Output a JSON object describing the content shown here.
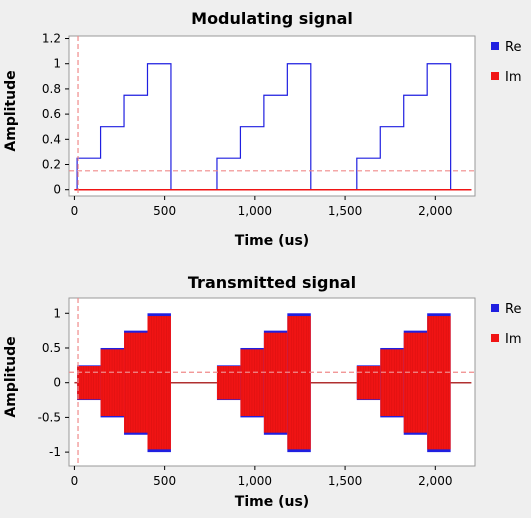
{
  "colors": {
    "background": "#efefef",
    "plot_background": "#ffffff",
    "re": "#1f1fe0",
    "im": "#f01414",
    "marker": "#f08a8a",
    "frame": "#9a9a9a"
  },
  "chart_data": [
    {
      "type": "line",
      "title": "Modulating signal",
      "xlabel": "Time (us)",
      "ylabel": "Amplitude",
      "xlim": [
        -30,
        2220
      ],
      "ylim": [
        -0.05,
        1.22
      ],
      "xticks": [
        {
          "v": 0,
          "label": "0"
        },
        {
          "v": 500,
          "label": "500"
        },
        {
          "v": 1000,
          "label": "1,000"
        },
        {
          "v": 1500,
          "label": "1,500"
        },
        {
          "v": 2000,
          "label": "2,000"
        }
      ],
      "yticks": [
        {
          "v": 0,
          "label": "0"
        },
        {
          "v": 0.2,
          "label": "0.2"
        },
        {
          "v": 0.4,
          "label": "0.4"
        },
        {
          "v": 0.6,
          "label": "0.6"
        },
        {
          "v": 0.8,
          "label": "0.8"
        },
        {
          "v": 1,
          "label": "1"
        },
        {
          "v": 1.2,
          "label": "1.2"
        }
      ],
      "legend": {
        "position": "right",
        "entries": [
          "Re",
          "Im"
        ]
      },
      "marker_lines": {
        "x": 20,
        "y": 0.15
      },
      "series": [
        {
          "name": "Re",
          "step": true,
          "x": [
            0,
            15,
            145,
            275,
            405,
            535,
            790,
            920,
            1050,
            1180,
            1310,
            1565,
            1695,
            1825,
            1955,
            2085,
            2200
          ],
          "y": [
            0,
            0.25,
            0.5,
            0.75,
            1,
            0,
            0.25,
            0.5,
            0.75,
            1,
            0,
            0.25,
            0.5,
            0.75,
            1,
            0,
            0
          ]
        },
        {
          "name": "Im",
          "step": true,
          "x": [
            0,
            2200
          ],
          "y": [
            0,
            0
          ]
        }
      ]
    },
    {
      "type": "line",
      "title": "Transmitted signal",
      "xlabel": "Time (us)",
      "ylabel": "Amplitude",
      "xlim": [
        -30,
        2220
      ],
      "ylim": [
        -1.2,
        1.22
      ],
      "xticks": [
        {
          "v": 0,
          "label": "0"
        },
        {
          "v": 500,
          "label": "500"
        },
        {
          "v": 1000,
          "label": "1,000"
        },
        {
          "v": 1500,
          "label": "1,500"
        },
        {
          "v": 2000,
          "label": "2,000"
        }
      ],
      "yticks": [
        {
          "v": -1,
          "label": "-1"
        },
        {
          "v": -0.5,
          "label": "-0.5"
        },
        {
          "v": 0,
          "label": "0"
        },
        {
          "v": 0.5,
          "label": "0.5"
        },
        {
          "v": 1,
          "label": "1"
        }
      ],
      "legend": {
        "position": "right",
        "entries": [
          "Re",
          "Im"
        ]
      },
      "marker_lines": {
        "x": 20,
        "y": 0.15
      },
      "envelope": {
        "segments": [
          {
            "x0": 15,
            "x1": 145,
            "amp": 0.25
          },
          {
            "x0": 145,
            "x1": 275,
            "amp": 0.5
          },
          {
            "x0": 275,
            "x1": 405,
            "amp": 0.75
          },
          {
            "x0": 405,
            "x1": 535,
            "amp": 1.0
          },
          {
            "x0": 790,
            "x1": 920,
            "amp": 0.25
          },
          {
            "x0": 920,
            "x1": 1050,
            "amp": 0.5
          },
          {
            "x0": 1050,
            "x1": 1180,
            "amp": 0.75
          },
          {
            "x0": 1180,
            "x1": 1310,
            "amp": 1.0
          },
          {
            "x0": 1565,
            "x1": 1695,
            "amp": 0.25
          },
          {
            "x0": 1695,
            "x1": 1825,
            "amp": 0.5
          },
          {
            "x0": 1825,
            "x1": 1955,
            "amp": 0.75
          },
          {
            "x0": 1955,
            "x1": 2085,
            "amp": 1.0
          }
        ],
        "baseline": [
          {
            "x0": 0,
            "x1": 15
          },
          {
            "x0": 535,
            "x1": 790
          },
          {
            "x0": 1310,
            "x1": 1565
          },
          {
            "x0": 2085,
            "x1": 2200
          }
        ]
      }
    }
  ]
}
